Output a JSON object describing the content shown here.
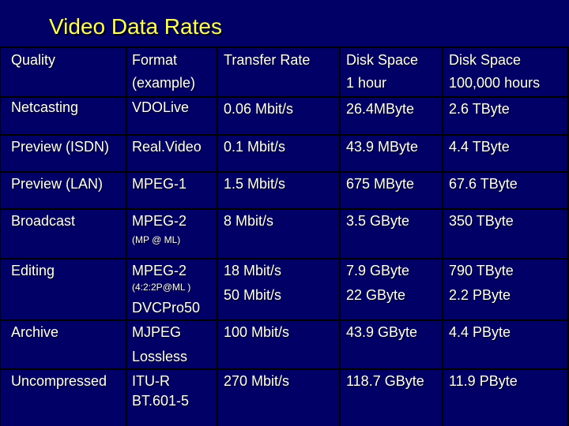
{
  "title": "Video Data Rates",
  "colors": {
    "background": "#000066",
    "title": "#ffff66",
    "text": "#ffffff",
    "lines": "#000000"
  },
  "header": {
    "quality": "Quality",
    "format": "Format",
    "format_sub": "(example)",
    "transfer": "Transfer Rate",
    "disk1": "Disk Space",
    "disk1_sub": "1 hour",
    "disk2": "Disk Space",
    "disk2_sub": "100,000 hours"
  },
  "rows": [
    {
      "quality": "Netcasting",
      "format": "VDOLive",
      "rate": "0.06 Mbit/s",
      "disk1": "26.4MByte",
      "disk2": "2.6 TByte"
    },
    {
      "quality": "Preview (ISDN)",
      "format": "Real.Video",
      "rate": "0.1 Mbit/s",
      "disk1": "43.9 MByte",
      "disk2": "4.4 TByte"
    },
    {
      "quality": "Preview (LAN)",
      "format": "MPEG-1",
      "rate": "1.5 Mbit/s",
      "disk1": "675 MByte",
      "disk2": "67.6 TByte"
    },
    {
      "quality": "Broadcast",
      "format": "MPEG-2",
      "format_note": "(MP @ ML)",
      "rate": "8 Mbit/s",
      "disk1": "3.5 GByte",
      "disk2": "350 TByte"
    },
    {
      "quality": "Editing",
      "format": "MPEG-2",
      "format_note": "(4:2:2P@ML )",
      "format2": "DVCPro50",
      "rate": "18 Mbit/s",
      "rate2": "50 Mbit/s",
      "disk1": "7.9 GByte",
      "disk1_2": "22 GByte",
      "disk2": "790 TByte",
      "disk2_2": "2.2 PByte"
    },
    {
      "quality": "Archive",
      "format": "MJPEG",
      "format2": "Lossless",
      "rate": "100 Mbit/s",
      "disk1": "43.9 GByte",
      "disk2": "4.4 PByte"
    },
    {
      "quality": "Uncompressed",
      "format": "ITU-R",
      "format2": "BT.601-5",
      "rate": "270 Mbit/s",
      "disk1": "118.7 GByte",
      "disk2": "11.9 PByte"
    }
  ]
}
